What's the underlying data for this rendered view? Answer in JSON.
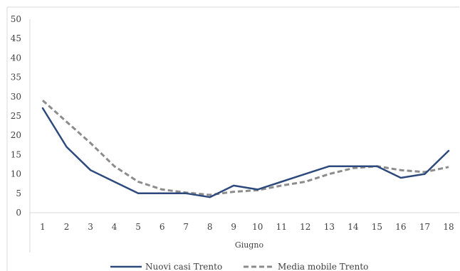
{
  "chart_data": {
    "type": "line",
    "title": "",
    "xlabel": "Giugno",
    "ylabel": "",
    "categories": [
      "1",
      "2",
      "3",
      "4",
      "5",
      "6",
      "7",
      "8",
      "9",
      "10",
      "11",
      "12",
      "13",
      "14",
      "15",
      "16",
      "17",
      "18"
    ],
    "ylim": [
      0,
      50
    ],
    "yticks": [
      0,
      5,
      10,
      15,
      20,
      25,
      30,
      35,
      40,
      45,
      50
    ],
    "grid": false,
    "legend_position": "bottom",
    "series": [
      {
        "name": "Nuovi casi Trento",
        "color": "#2e4a7d",
        "style": "solid",
        "values": [
          27,
          17,
          11,
          8,
          5,
          5,
          5,
          4,
          7,
          6,
          8,
          10,
          12,
          12,
          12,
          9,
          10,
          16
        ]
      },
      {
        "name": "Media mobile Trento",
        "color": "#8c8c8c",
        "style": "dashed",
        "values": [
          29,
          23.5,
          18,
          12,
          8,
          6,
          5.2,
          4.6,
          5.4,
          5.8,
          7,
          8,
          10,
          11.5,
          12,
          11,
          10.5,
          11.8
        ]
      }
    ]
  }
}
